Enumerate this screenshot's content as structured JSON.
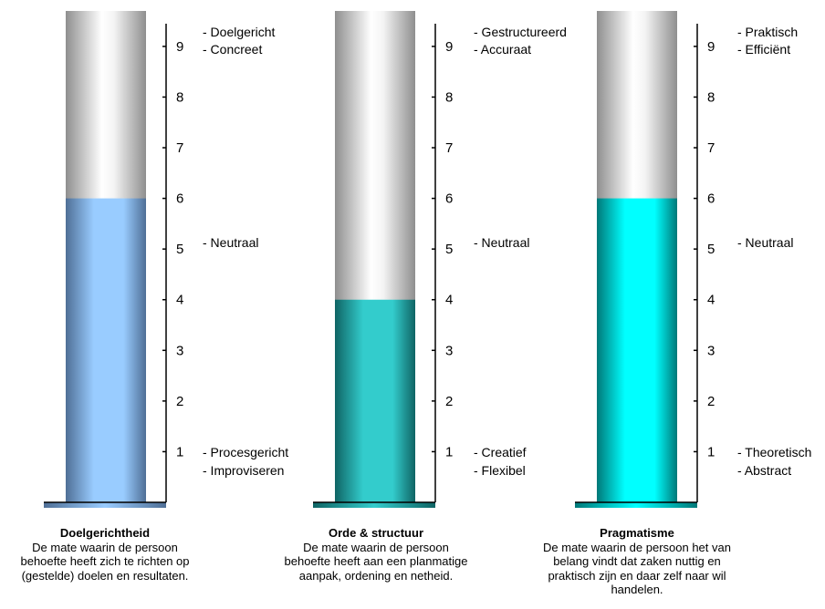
{
  "chart_data": [
    {
      "type": "bar",
      "title": "Doelgerichtheid",
      "description": "De mate waarin de persoon behoefte heeft zich te richten op (gestelde) doelen en resultaten.",
      "value": 6,
      "ylim": [
        0,
        9.7
      ],
      "ticks": [
        1,
        2,
        3,
        4,
        5,
        6,
        7,
        8,
        9
      ],
      "fill_color": "#99ccff",
      "fill_shade": "#4f6f96",
      "top_labels": [
        "- Doelgericht",
        "- Concreet"
      ],
      "mid_labels": [
        "- Neutraal"
      ],
      "bottom_labels": [
        "- Procesgericht",
        "- Improviseren"
      ]
    },
    {
      "type": "bar",
      "title": "Orde & structuur",
      "description": "De mate waarin de persoon behoefte heeft aan een planmatige aanpak, ordening en netheid.",
      "value": 4,
      "ylim": [
        0,
        9.7
      ],
      "ticks": [
        1,
        2,
        3,
        4,
        5,
        6,
        7,
        8,
        9
      ],
      "fill_color": "#33cccc",
      "fill_shade": "#0f6464",
      "top_labels": [
        "- Gestructureerd",
        "- Accuraat"
      ],
      "mid_labels": [
        "- Neutraal"
      ],
      "bottom_labels": [
        "- Creatief",
        "- Flexibel"
      ]
    },
    {
      "type": "bar",
      "title": "Pragmatisme",
      "description": "De mate waarin de persoon het van belang vindt dat zaken nuttig en praktisch zijn en daar zelf naar wil handelen.",
      "value": 6,
      "ylim": [
        0,
        9.7
      ],
      "ticks": [
        1,
        2,
        3,
        4,
        5,
        6,
        7,
        8,
        9
      ],
      "fill_color": "#00ffff",
      "fill_shade": "#007878",
      "top_labels": [
        "- Praktisch",
        "- Efficiënt"
      ],
      "mid_labels": [
        "- Neutraal"
      ],
      "bottom_labels": [
        "- Theoretisch",
        "- Abstract"
      ]
    }
  ]
}
